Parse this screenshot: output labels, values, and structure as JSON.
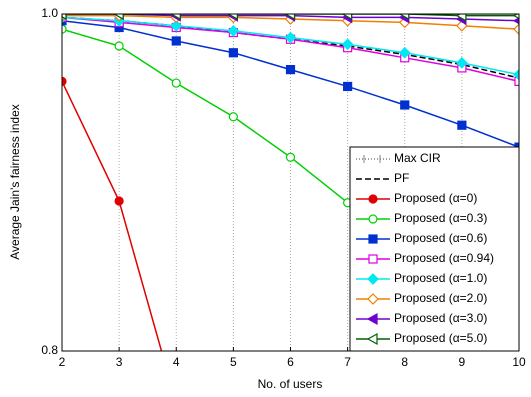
{
  "chart_data": {
    "type": "line",
    "x_label": "No. of users",
    "y_label": "Average Jain's fairness index",
    "x": [
      2,
      3,
      4,
      5,
      6,
      7,
      8,
      9,
      10
    ],
    "xlim": [
      2,
      10
    ],
    "xticks": [
      2,
      3,
      4,
      5,
      6,
      7,
      8,
      9,
      10
    ],
    "ylim": [
      0.8,
      1.0
    ],
    "yticks": [
      0.8,
      {
        "value": 1.0,
        "label": "1.0"
      }
    ],
    "grid": true,
    "legend": "lower right",
    "series": [
      {
        "name": "Max CIR",
        "color": "#808080",
        "style": "dotted",
        "marker": "tick",
        "values": [
          null,
          null,
          null,
          null,
          null,
          null,
          null,
          null,
          null
        ]
      },
      {
        "name": "PF",
        "color": "#000000",
        "style": "dashed",
        "marker": "none",
        "values": [
          0.998,
          0.996,
          0.993,
          0.989,
          0.985,
          0.981,
          0.976,
          0.97,
          0.962
        ]
      },
      {
        "name": "Proposed (α=0)",
        "color": "#e00000",
        "marker": "circle",
        "filled": true,
        "values": [
          0.96,
          0.889,
          0.769,
          null,
          null,
          null,
          null,
          null,
          null
        ]
      },
      {
        "name": "Proposed (α=0.3)",
        "color": "#00d000",
        "marker": "circle",
        "filled": false,
        "values": [
          0.991,
          0.981,
          0.959,
          0.939,
          0.915,
          0.888,
          0.861,
          0.833,
          0.805
        ]
      },
      {
        "name": "Proposed (α=0.6)",
        "color": "#0030d0",
        "marker": "square",
        "filled": true,
        "values": [
          0.996,
          0.992,
          0.984,
          0.977,
          0.967,
          0.957,
          0.946,
          0.934,
          0.921
        ]
      },
      {
        "name": "Proposed (α=0.94)",
        "color": "#e000e0",
        "marker": "square",
        "filled": false,
        "values": [
          0.998,
          0.995,
          0.992,
          0.989,
          0.985,
          0.98,
          0.974,
          0.968,
          0.96
        ]
      },
      {
        "name": "Proposed (α=1.0)",
        "color": "#00e8f0",
        "marker": "diamond",
        "filled": true,
        "values": [
          0.998,
          0.996,
          0.993,
          0.99,
          0.986,
          0.982,
          0.977,
          0.971,
          0.964
        ]
      },
      {
        "name": "Proposed (α=2.0)",
        "color": "#f08000",
        "marker": "diamond",
        "filled": false,
        "values": [
          0.999,
          0.999,
          0.998,
          0.998,
          0.997,
          0.996,
          0.995,
          0.993,
          0.991
        ]
      },
      {
        "name": "Proposed (α=3.0)",
        "color": "#7000d0",
        "marker": "triangle",
        "filled": true,
        "values": [
          1.0,
          1.0,
          0.999,
          0.999,
          0.999,
          0.998,
          0.998,
          0.997,
          0.996
        ]
      },
      {
        "name": "Proposed (α=5.0)",
        "color": "#006000",
        "marker": "triangle",
        "filled": false,
        "values": [
          1.0,
          1.0,
          1.0,
          1.0,
          1.0,
          1.0,
          1.0,
          0.999,
          0.999
        ]
      }
    ]
  }
}
